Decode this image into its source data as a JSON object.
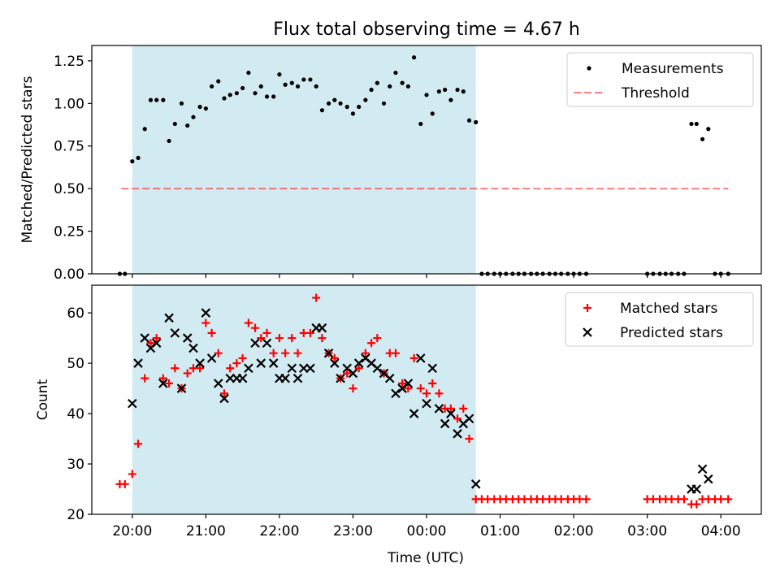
{
  "figure_title": "Flux total observing time = 4.67 h",
  "colors": {
    "span": "#add8e6",
    "measurement": "#000000",
    "threshold": "#ff0000",
    "matched": "#ff0000",
    "predicted": "#000000"
  },
  "chart_data": [
    {
      "type": "scatter",
      "title": "Flux total observing time = 4.67 h",
      "xlabel": "",
      "ylabel": "Matched/Predicted stars",
      "x_unit": "hours after 20:00 UTC",
      "xlim": [
        -0.55,
        8.55
      ],
      "ylim": [
        0,
        1.34
      ],
      "yticks": [
        0.0,
        0.25,
        0.5,
        0.75,
        1.0,
        1.25
      ],
      "ytick_labels": [
        "0.00",
        "0.25",
        "0.50",
        "0.75",
        "1.00",
        "1.25"
      ],
      "xticks": [
        0,
        1,
        2,
        3,
        4,
        5,
        6,
        7,
        8
      ],
      "shaded_span": [
        0,
        4.67
      ],
      "threshold": {
        "name": "Threshold",
        "value": 0.5,
        "x_range": [
          -0.15,
          8.1
        ],
        "style": "dashed"
      },
      "legend": {
        "position": "top-right",
        "entries": [
          "Measurements",
          "Threshold"
        ]
      },
      "series": [
        {
          "name": "Measurements",
          "marker": "dot",
          "points": [
            [
              -0.17,
              0
            ],
            [
              -0.1,
              0
            ],
            [
              0.0,
              0.66
            ],
            [
              0.08,
              0.68
            ],
            [
              0.17,
              0.85
            ],
            [
              0.25,
              1.02
            ],
            [
              0.33,
              1.02
            ],
            [
              0.42,
              1.02
            ],
            [
              0.5,
              0.78
            ],
            [
              0.58,
              0.88
            ],
            [
              0.67,
              1.0
            ],
            [
              0.75,
              0.87
            ],
            [
              0.83,
              0.92
            ],
            [
              0.92,
              0.98
            ],
            [
              1.0,
              0.97
            ],
            [
              1.08,
              1.1
            ],
            [
              1.17,
              1.13
            ],
            [
              1.25,
              1.03
            ],
            [
              1.33,
              1.05
            ],
            [
              1.42,
              1.06
            ],
            [
              1.5,
              1.09
            ],
            [
              1.58,
              1.18
            ],
            [
              1.67,
              1.06
            ],
            [
              1.75,
              1.1
            ],
            [
              1.83,
              1.04
            ],
            [
              1.92,
              1.04
            ],
            [
              2.0,
              1.17
            ],
            [
              2.08,
              1.11
            ],
            [
              2.17,
              1.12
            ],
            [
              2.25,
              1.1
            ],
            [
              2.33,
              1.14
            ],
            [
              2.42,
              1.14
            ],
            [
              2.5,
              1.1
            ],
            [
              2.58,
              0.96
            ],
            [
              2.67,
              1.0
            ],
            [
              2.75,
              1.02
            ],
            [
              2.83,
              1.0
            ],
            [
              2.92,
              0.98
            ],
            [
              3.0,
              0.94
            ],
            [
              3.08,
              0.98
            ],
            [
              3.17,
              1.02
            ],
            [
              3.25,
              1.08
            ],
            [
              3.33,
              1.12
            ],
            [
              3.42,
              1.0
            ],
            [
              3.5,
              1.1
            ],
            [
              3.58,
              1.18
            ],
            [
              3.67,
              1.12
            ],
            [
              3.75,
              1.1
            ],
            [
              3.83,
              1.27
            ],
            [
              3.92,
              0.88
            ],
            [
              4.0,
              1.05
            ],
            [
              4.08,
              0.94
            ],
            [
              4.17,
              1.07
            ],
            [
              4.25,
              1.08
            ],
            [
              4.33,
              1.02
            ],
            [
              4.42,
              1.08
            ],
            [
              4.5,
              1.07
            ],
            [
              4.58,
              0.9
            ],
            [
              4.67,
              0.89
            ],
            [
              4.75,
              0
            ],
            [
              4.83,
              0
            ],
            [
              4.92,
              0
            ],
            [
              5.0,
              0
            ],
            [
              5.08,
              0
            ],
            [
              5.17,
              0
            ],
            [
              5.25,
              0
            ],
            [
              5.33,
              0
            ],
            [
              5.42,
              0
            ],
            [
              5.5,
              0
            ],
            [
              5.58,
              0
            ],
            [
              5.67,
              0
            ],
            [
              5.75,
              0
            ],
            [
              5.83,
              0
            ],
            [
              5.92,
              0
            ],
            [
              6.0,
              0
            ],
            [
              6.08,
              0
            ],
            [
              6.17,
              0
            ],
            [
              7.0,
              0
            ],
            [
              7.08,
              0
            ],
            [
              7.17,
              0
            ],
            [
              7.25,
              0
            ],
            [
              7.33,
              0
            ],
            [
              7.42,
              0
            ],
            [
              7.5,
              0
            ],
            [
              7.6,
              0.88
            ],
            [
              7.67,
              0.88
            ],
            [
              7.75,
              0.79
            ],
            [
              7.83,
              0.85
            ],
            [
              7.92,
              0
            ],
            [
              8.0,
              0
            ],
            [
              8.1,
              0
            ]
          ]
        }
      ]
    },
    {
      "type": "scatter",
      "title": "",
      "xlabel": "Time (UTC)",
      "ylabel": "Count",
      "x_unit": "hours after 20:00 UTC",
      "xlim": [
        -0.55,
        8.55
      ],
      "ylim": [
        20,
        65.5
      ],
      "yticks": [
        20,
        30,
        40,
        50,
        60
      ],
      "ytick_labels": [
        "20",
        "30",
        "40",
        "50",
        "60"
      ],
      "xticks": [
        0,
        1,
        2,
        3,
        4,
        5,
        6,
        7,
        8
      ],
      "xtick_labels": [
        "20:00",
        "21:00",
        "22:00",
        "23:00",
        "00:00",
        "01:00",
        "02:00",
        "03:00",
        "04:00"
      ],
      "shaded_span": [
        0,
        4.67
      ],
      "legend": {
        "position": "top-right",
        "entries": [
          "Matched stars",
          "Predicted stars"
        ]
      },
      "series": [
        {
          "name": "Matched stars",
          "marker": "plus",
          "points": [
            [
              -0.17,
              26
            ],
            [
              -0.1,
              26
            ],
            [
              0.0,
              28
            ],
            [
              0.08,
              34
            ],
            [
              0.17,
              47
            ],
            [
              0.25,
              54
            ],
            [
              0.33,
              55
            ],
            [
              0.42,
              47
            ],
            [
              0.5,
              46
            ],
            [
              0.58,
              49
            ],
            [
              0.67,
              45
            ],
            [
              0.75,
              48
            ],
            [
              0.83,
              49
            ],
            [
              0.92,
              49
            ],
            [
              1.0,
              58
            ],
            [
              1.08,
              56
            ],
            [
              1.17,
              52
            ],
            [
              1.25,
              44
            ],
            [
              1.33,
              49
            ],
            [
              1.42,
              50
            ],
            [
              1.5,
              51
            ],
            [
              1.58,
              58
            ],
            [
              1.67,
              57
            ],
            [
              1.75,
              55
            ],
            [
              1.83,
              56
            ],
            [
              1.92,
              52
            ],
            [
              2.0,
              55
            ],
            [
              2.08,
              52
            ],
            [
              2.17,
              55
            ],
            [
              2.25,
              52
            ],
            [
              2.33,
              56
            ],
            [
              2.42,
              56
            ],
            [
              2.5,
              63
            ],
            [
              2.58,
              55
            ],
            [
              2.67,
              52
            ],
            [
              2.75,
              51
            ],
            [
              2.83,
              47
            ],
            [
              2.92,
              48
            ],
            [
              3.0,
              45
            ],
            [
              3.08,
              49
            ],
            [
              3.17,
              52
            ],
            [
              3.25,
              54
            ],
            [
              3.33,
              55
            ],
            [
              3.42,
              48
            ],
            [
              3.5,
              52
            ],
            [
              3.58,
              52
            ],
            [
              3.67,
              46
            ],
            [
              3.75,
              45
            ],
            [
              3.83,
              51
            ],
            [
              3.92,
              45
            ],
            [
              4.0,
              44
            ],
            [
              4.08,
              46
            ],
            [
              4.17,
              44
            ],
            [
              4.25,
              41
            ],
            [
              4.33,
              41
            ],
            [
              4.42,
              39
            ],
            [
              4.5,
              41
            ],
            [
              4.58,
              35
            ],
            [
              4.67,
              23
            ],
            [
              4.75,
              23
            ],
            [
              4.83,
              23
            ],
            [
              4.92,
              23
            ],
            [
              5.0,
              23
            ],
            [
              5.08,
              23
            ],
            [
              5.17,
              23
            ],
            [
              5.25,
              23
            ],
            [
              5.33,
              23
            ],
            [
              5.42,
              23
            ],
            [
              5.5,
              23
            ],
            [
              5.58,
              23
            ],
            [
              5.67,
              23
            ],
            [
              5.75,
              23
            ],
            [
              5.83,
              23
            ],
            [
              5.92,
              23
            ],
            [
              6.0,
              23
            ],
            [
              6.08,
              23
            ],
            [
              6.17,
              23
            ],
            [
              7.0,
              23
            ],
            [
              7.08,
              23
            ],
            [
              7.17,
              23
            ],
            [
              7.25,
              23
            ],
            [
              7.33,
              23
            ],
            [
              7.42,
              23
            ],
            [
              7.5,
              23
            ],
            [
              7.6,
              22
            ],
            [
              7.67,
              22
            ],
            [
              7.75,
              23
            ],
            [
              7.83,
              23
            ],
            [
              7.92,
              23
            ],
            [
              8.0,
              23
            ],
            [
              8.1,
              23
            ]
          ]
        },
        {
          "name": "Predicted stars",
          "marker": "x",
          "points": [
            [
              0.0,
              42
            ],
            [
              0.08,
              50
            ],
            [
              0.17,
              55
            ],
            [
              0.25,
              53
            ],
            [
              0.33,
              54
            ],
            [
              0.42,
              46
            ],
            [
              0.5,
              59
            ],
            [
              0.58,
              56
            ],
            [
              0.67,
              45
            ],
            [
              0.75,
              55
            ],
            [
              0.83,
              53
            ],
            [
              0.92,
              50
            ],
            [
              1.0,
              60
            ],
            [
              1.08,
              51
            ],
            [
              1.17,
              46
            ],
            [
              1.25,
              43
            ],
            [
              1.33,
              47
            ],
            [
              1.42,
              47
            ],
            [
              1.5,
              47
            ],
            [
              1.58,
              49
            ],
            [
              1.67,
              54
            ],
            [
              1.75,
              50
            ],
            [
              1.83,
              54
            ],
            [
              1.92,
              50
            ],
            [
              2.0,
              47
            ],
            [
              2.08,
              47
            ],
            [
              2.17,
              49
            ],
            [
              2.25,
              47
            ],
            [
              2.33,
              49
            ],
            [
              2.42,
              49
            ],
            [
              2.5,
              57
            ],
            [
              2.58,
              57
            ],
            [
              2.67,
              52
            ],
            [
              2.75,
              50
            ],
            [
              2.83,
              47
            ],
            [
              2.92,
              49
            ],
            [
              3.0,
              48
            ],
            [
              3.08,
              50
            ],
            [
              3.17,
              51
            ],
            [
              3.25,
              50
            ],
            [
              3.33,
              49
            ],
            [
              3.42,
              48
            ],
            [
              3.5,
              47
            ],
            [
              3.58,
              44
            ],
            [
              3.67,
              45
            ],
            [
              3.75,
              46
            ],
            [
              3.83,
              40
            ],
            [
              3.92,
              51
            ],
            [
              4.0,
              42
            ],
            [
              4.08,
              49
            ],
            [
              4.17,
              41
            ],
            [
              4.25,
              38
            ],
            [
              4.33,
              40
            ],
            [
              4.42,
              36
            ],
            [
              4.5,
              38
            ],
            [
              4.58,
              39
            ],
            [
              4.67,
              26
            ],
            [
              7.6,
              25
            ],
            [
              7.67,
              25
            ],
            [
              7.75,
              29
            ],
            [
              7.83,
              27
            ]
          ]
        }
      ]
    }
  ]
}
